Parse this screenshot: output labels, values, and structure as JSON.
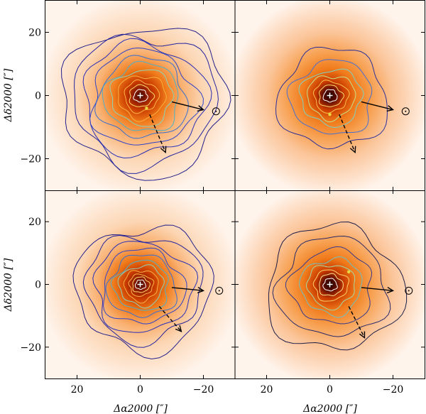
{
  "chart_data": {
    "type": "heatmap",
    "description_units": "arcsec offsets",
    "layout": "2x2 panel grid, shared axes",
    "xlabel": "Δα2000 [″]",
    "ylabel": "Δδ2000 [″]",
    "xlim": [
      30,
      -30
    ],
    "ylim": [
      -30,
      30
    ],
    "xticks": [
      20,
      0,
      -20
    ],
    "yticks": [
      20,
      0,
      -20
    ],
    "xtick_labels": [
      "20",
      "0",
      "−20"
    ],
    "ytick_labels": [
      "20",
      "0",
      "−20"
    ],
    "colormap": "white-orange-red-black",
    "panels": [
      {
        "id": "top-left",
        "peak_strength": 0.75,
        "source_marker": {
          "x": 0,
          "y": 0,
          "symbol": "+"
        },
        "secondary_dot": {
          "x": -2,
          "y": -4
        },
        "sun_symbol": {
          "x": -24,
          "y": -5
        },
        "solid_arrow": {
          "from": [
            -10,
            -2
          ],
          "to": [
            -20,
            -4.5
          ]
        },
        "dashed_arrow": {
          "from": [
            -3,
            -6
          ],
          "to": [
            -8,
            -18
          ]
        },
        "contour_radii": [
          2,
          3.5,
          5,
          7,
          9,
          11,
          13,
          15.5,
          18,
          21,
          24
        ],
        "contour_colors": [
          "#ffffff",
          "#ffd86a",
          "#ffb347",
          "#f7b040",
          "#8fd3b4",
          "#4fb0c8",
          "#3a6fd0",
          "#2f44c8",
          "#2a2fb6",
          "#24239e",
          "#221f8c"
        ]
      },
      {
        "id": "top-right",
        "peak_strength": 1.0,
        "source_marker": {
          "x": 0,
          "y": 0,
          "symbol": "+"
        },
        "secondary_dot": {
          "x": 0,
          "y": -6
        },
        "sun_symbol": {
          "x": -24,
          "y": -5
        },
        "solid_arrow": {
          "from": [
            -10,
            -2
          ],
          "to": [
            -20,
            -4.5
          ]
        },
        "dashed_arrow": {
          "from": [
            -3,
            -6
          ],
          "to": [
            -8,
            -18
          ]
        },
        "contour_radii": [
          2,
          3.5,
          5,
          7,
          9,
          12,
          16
        ],
        "contour_colors": [
          "#ffffff",
          "#ffd86a",
          "#ffc04a",
          "#c8e08a",
          "#7fd0c0",
          "#4a6fd0",
          "#2b2f9a"
        ]
      },
      {
        "id": "bottom-left",
        "peak_strength": 0.8,
        "source_marker": {
          "x": 0,
          "y": 0,
          "symbol": "+"
        },
        "secondary_dot": null,
        "sun_symbol": {
          "x": -25,
          "y": -2
        },
        "solid_arrow": {
          "from": [
            -10,
            -1
          ],
          "to": [
            -20,
            -2
          ]
        },
        "dashed_arrow": {
          "from": [
            -6,
            -7
          ],
          "to": [
            -13,
            -15
          ]
        },
        "contour_radii": [
          1.5,
          2.5,
          3.5,
          5,
          6.5,
          8,
          10,
          12,
          14.5,
          17,
          20
        ],
        "contour_colors": [
          "#ffffff",
          "#ffd86a",
          "#ffb347",
          "#f7b040",
          "#8fd3b4",
          "#4fb0c8",
          "#3a6fd0",
          "#2f44c8",
          "#2a2fb6",
          "#24239e",
          "#221f8c"
        ]
      },
      {
        "id": "bottom-right",
        "peak_strength": 1.0,
        "source_marker": {
          "x": 0,
          "y": 0,
          "symbol": "+"
        },
        "secondary_dot": {
          "x": -6,
          "y": 4
        },
        "sun_symbol": {
          "x": -25,
          "y": -2
        },
        "solid_arrow": {
          "from": [
            -10,
            -1
          ],
          "to": [
            -20,
            -2
          ]
        },
        "dashed_arrow": {
          "from": [
            -6,
            -7
          ],
          "to": [
            -11,
            -17
          ]
        },
        "contour_radii": [
          2,
          3.5,
          5,
          7,
          9,
          12,
          16,
          20
        ],
        "contour_colors": [
          "#ffffff",
          "#ffe08a",
          "#ffd06a",
          "#a8d8a0",
          "#6fc0c0",
          "#3a3a8a",
          "#2a2a6a",
          "#1d1d4a"
        ]
      }
    ]
  }
}
